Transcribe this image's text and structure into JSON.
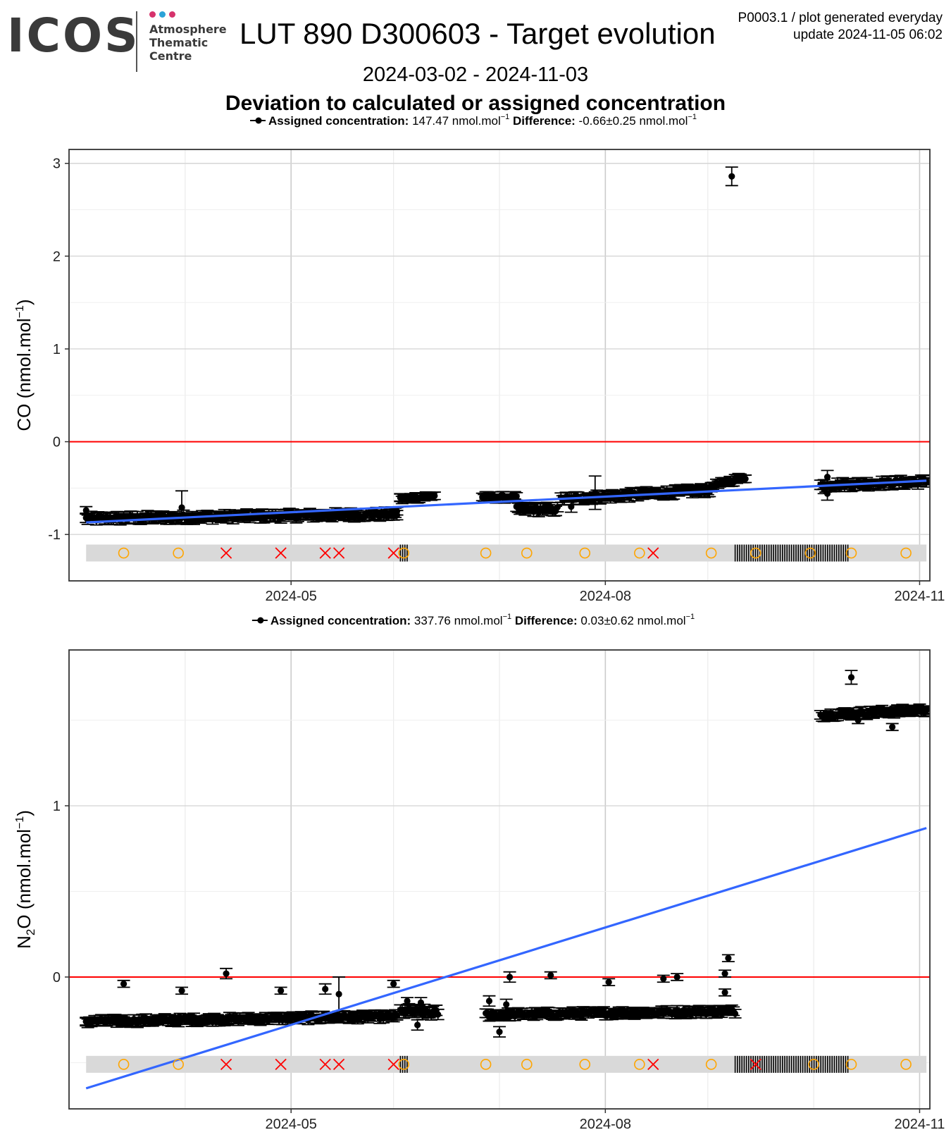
{
  "header": {
    "logo_text": "ICOS",
    "logo_sub": [
      "Atmosphere",
      "Thematic",
      "Centre"
    ],
    "title": "LUT 890 D300603 - Target evolution",
    "meta_line1": "P0003.1 / plot generated everyday",
    "meta_line2": "update  2024-11-05 06:02",
    "date_range": "2024-03-02 - 2024-11-03",
    "subtitle": "Deviation to calculated or assigned concentration"
  },
  "colors": {
    "logo_dots": [
      "#d6336c",
      "#2ba3d8",
      "#d6336c"
    ],
    "points": "#000000",
    "zero_line": "#ff0000",
    "trend": "#3366ff",
    "flag_band": "#d9d9d9",
    "circle_flag": "#ffa500",
    "cross_flag": "#ff0000"
  },
  "chart_data": [
    {
      "type": "scatter",
      "legend_label": "Assigned concentration:",
      "legend_value": "147.47 nmol.mol",
      "legend_exp": "−1",
      "diff_label": "Difference:",
      "diff_value": "-0.66±0.25 nmol.mol",
      "diff_exp": "−1",
      "ylabel_main": "CO (nmol.mol",
      "ylabel_exp": "−1",
      "ylabel_end": ")",
      "ylim": [
        -1.5,
        3.15
      ],
      "yticks": [
        -1,
        0,
        1,
        2,
        3
      ],
      "xlim": [
        "2024-02-26",
        "2024-11-04"
      ],
      "xticks_major": [
        {
          "date": "2024-05-01",
          "label": "2024-05"
        },
        {
          "date": "2024-08-01",
          "label": "2024-08"
        },
        {
          "date": "2024-11-01",
          "label": "2024-11"
        }
      ],
      "xgrid_minor": [
        "2024-03-31",
        "2024-05-31",
        "2024-07-01",
        "2024-08-31",
        "2024-10-01"
      ],
      "zero_line": 0,
      "trend": {
        "start": [
          "2024-03-02",
          -0.87
        ],
        "end": [
          "2024-11-03",
          -0.42
        ]
      },
      "flag_band_y": -1.2,
      "series": [
        {
          "segments": [
            {
              "from": "2024-03-02",
              "to": "2024-06-01",
              "y0": -0.83,
              "y1": -0.78,
              "err": 0.05
            },
            {
              "from": "2024-06-02",
              "to": "2024-06-12",
              "y0": -0.62,
              "y1": -0.58,
              "err": 0.04
            },
            {
              "from": "2024-06-26",
              "to": "2024-07-06",
              "y0": -0.6,
              "y1": -0.6,
              "err": 0.04
            },
            {
              "from": "2024-07-06",
              "to": "2024-07-18",
              "y0": -0.73,
              "y1": -0.73,
              "err": 0.05
            },
            {
              "from": "2024-07-19",
              "to": "2024-09-01",
              "y0": -0.62,
              "y1": -0.52,
              "err": 0.05
            },
            {
              "from": "2024-09-01",
              "to": "2024-09-11",
              "y0": -0.48,
              "y1": -0.38,
              "err": 0.04
            },
            {
              "from": "2024-10-03",
              "to": "2024-11-03",
              "y0": -0.47,
              "y1": -0.43,
              "err": 0.05
            }
          ]
        },
        {
          "points": [
            {
              "x": "2024-03-02",
              "y": -0.74,
              "err": 0.04
            },
            {
              "x": "2024-03-30",
              "y": -0.71,
              "err": 0.18
            },
            {
              "x": "2024-06-01",
              "y": -0.75,
              "err": 0.04
            },
            {
              "x": "2024-06-02",
              "y": -0.6,
              "err": 0.04
            },
            {
              "x": "2024-07-22",
              "y": -0.7,
              "err": 0.06
            },
            {
              "x": "2024-07-29",
              "y": -0.55,
              "err": 0.18
            },
            {
              "x": "2024-08-31",
              "y": -0.52,
              "err": 0.05
            },
            {
              "x": "2024-09-07",
              "y": 2.86,
              "err": 0.1
            },
            {
              "x": "2024-10-04",
              "y": -0.5,
              "err": 0.06
            },
            {
              "x": "2024-10-05",
              "y": -0.56,
              "err": 0.07
            },
            {
              "x": "2024-10-05",
              "y": -0.38,
              "err": 0.07
            },
            {
              "x": "2024-11-03",
              "y": -0.43,
              "err": 0.03
            }
          ]
        }
      ],
      "flags_circle": [
        "2024-03-13",
        "2024-03-29",
        "2024-06-03",
        "2024-06-27",
        "2024-07-09",
        "2024-07-26",
        "2024-08-11",
        "2024-09-01",
        "2024-09-14",
        "2024-09-30",
        "2024-10-12",
        "2024-10-28"
      ],
      "flags_cross": [
        "2024-04-12",
        "2024-04-28",
        "2024-05-11",
        "2024-05-15",
        "2024-05-31",
        "2024-08-15"
      ],
      "hatch_ranges": [
        [
          "2024-06-02",
          "2024-06-04"
        ],
        [
          "2024-09-08",
          "2024-10-11"
        ]
      ]
    },
    {
      "type": "scatter",
      "legend_label": "Assigned concentration:",
      "legend_value": "337.76 nmol.mol",
      "legend_exp": "−1",
      "diff_label": "Difference:",
      "diff_value": "0.03±0.62 nmol.mol",
      "diff_exp": "−1",
      "ylabel_main": "N",
      "ylabel_sub": "2",
      "ylabel_rest": "O (nmol.mol",
      "ylabel_exp": "−1",
      "ylabel_end": ")",
      "ylim": [
        -0.77,
        1.91
      ],
      "yticks": [
        0,
        1
      ],
      "xlim": [
        "2024-02-26",
        "2024-11-04"
      ],
      "xticks_major": [
        {
          "date": "2024-05-01",
          "label": "2024-05"
        },
        {
          "date": "2024-08-01",
          "label": "2024-08"
        },
        {
          "date": "2024-11-01",
          "label": "2024-11"
        }
      ],
      "xgrid_minor": [
        "2024-03-31",
        "2024-05-31",
        "2024-07-01",
        "2024-08-31",
        "2024-10-01"
      ],
      "zero_line": 0,
      "trend": {
        "start": [
          "2024-03-02",
          -0.65
        ],
        "end": [
          "2024-11-03",
          0.87
        ]
      },
      "flag_band_y": -0.51,
      "series": [
        {
          "segments": [
            {
              "from": "2024-03-02",
              "to": "2024-06-01",
              "y0": -0.26,
              "y1": -0.23,
              "err": 0.025
            },
            {
              "from": "2024-06-02",
              "to": "2024-06-13",
              "y0": -0.2,
              "y1": -0.21,
              "err": 0.03
            },
            {
              "from": "2024-06-27",
              "to": "2024-09-08",
              "y0": -0.22,
              "y1": -0.2,
              "err": 0.025
            },
            {
              "from": "2024-10-03",
              "to": "2024-11-03",
              "y0": 1.53,
              "y1": 1.56,
              "err": 0.025
            }
          ]
        },
        {
          "points": [
            {
              "x": "2024-03-02",
              "y": -0.26,
              "err": 0.02
            },
            {
              "x": "2024-03-13",
              "y": -0.04,
              "err": 0.02
            },
            {
              "x": "2024-03-30",
              "y": -0.08,
              "err": 0.02
            },
            {
              "x": "2024-04-12",
              "y": 0.02,
              "err": 0.03
            },
            {
              "x": "2024-04-28",
              "y": -0.08,
              "err": 0.02
            },
            {
              "x": "2024-05-11",
              "y": -0.07,
              "err": 0.03
            },
            {
              "x": "2024-05-15",
              "y": -0.1,
              "err": 0.1
            },
            {
              "x": "2024-05-31",
              "y": -0.04,
              "err": 0.02
            },
            {
              "x": "2024-06-04",
              "y": -0.14,
              "err": 0.02
            },
            {
              "x": "2024-06-07",
              "y": -0.28,
              "err": 0.03
            },
            {
              "x": "2024-06-08",
              "y": -0.15,
              "err": 0.03
            },
            {
              "x": "2024-06-28",
              "y": -0.14,
              "err": 0.03
            },
            {
              "x": "2024-07-01",
              "y": -0.32,
              "err": 0.03
            },
            {
              "x": "2024-07-03",
              "y": -0.16,
              "err": 0.03
            },
            {
              "x": "2024-07-04",
              "y": 0.0,
              "err": 0.03
            },
            {
              "x": "2024-07-16",
              "y": 0.01,
              "err": 0.02
            },
            {
              "x": "2024-08-02",
              "y": -0.03,
              "err": 0.02
            },
            {
              "x": "2024-08-18",
              "y": -0.01,
              "err": 0.02
            },
            {
              "x": "2024-08-22",
              "y": 0.0,
              "err": 0.02
            },
            {
              "x": "2024-09-05",
              "y": 0.02,
              "err": 0.02
            },
            {
              "x": "2024-09-05",
              "y": -0.09,
              "err": 0.02
            },
            {
              "x": "2024-09-06",
              "y": 0.11,
              "err": 0.02
            },
            {
              "x": "2024-10-12",
              "y": 1.75,
              "err": 0.04
            },
            {
              "x": "2024-10-14",
              "y": 1.5,
              "err": 0.02
            },
            {
              "x": "2024-10-24",
              "y": 1.46,
              "err": 0.02
            },
            {
              "x": "2024-11-03",
              "y": 1.56,
              "err": 0.02
            }
          ]
        }
      ],
      "flags_circle": [
        "2024-03-13",
        "2024-03-29",
        "2024-06-03",
        "2024-06-27",
        "2024-07-09",
        "2024-07-26",
        "2024-08-11",
        "2024-09-01",
        "2024-10-01",
        "2024-10-12",
        "2024-10-28"
      ],
      "flags_cross": [
        "2024-04-12",
        "2024-04-28",
        "2024-05-11",
        "2024-05-15",
        "2024-05-31",
        "2024-08-15",
        "2024-09-14"
      ],
      "hatch_ranges": [
        [
          "2024-06-02",
          "2024-06-04"
        ],
        [
          "2024-09-08",
          "2024-10-11"
        ]
      ]
    }
  ]
}
